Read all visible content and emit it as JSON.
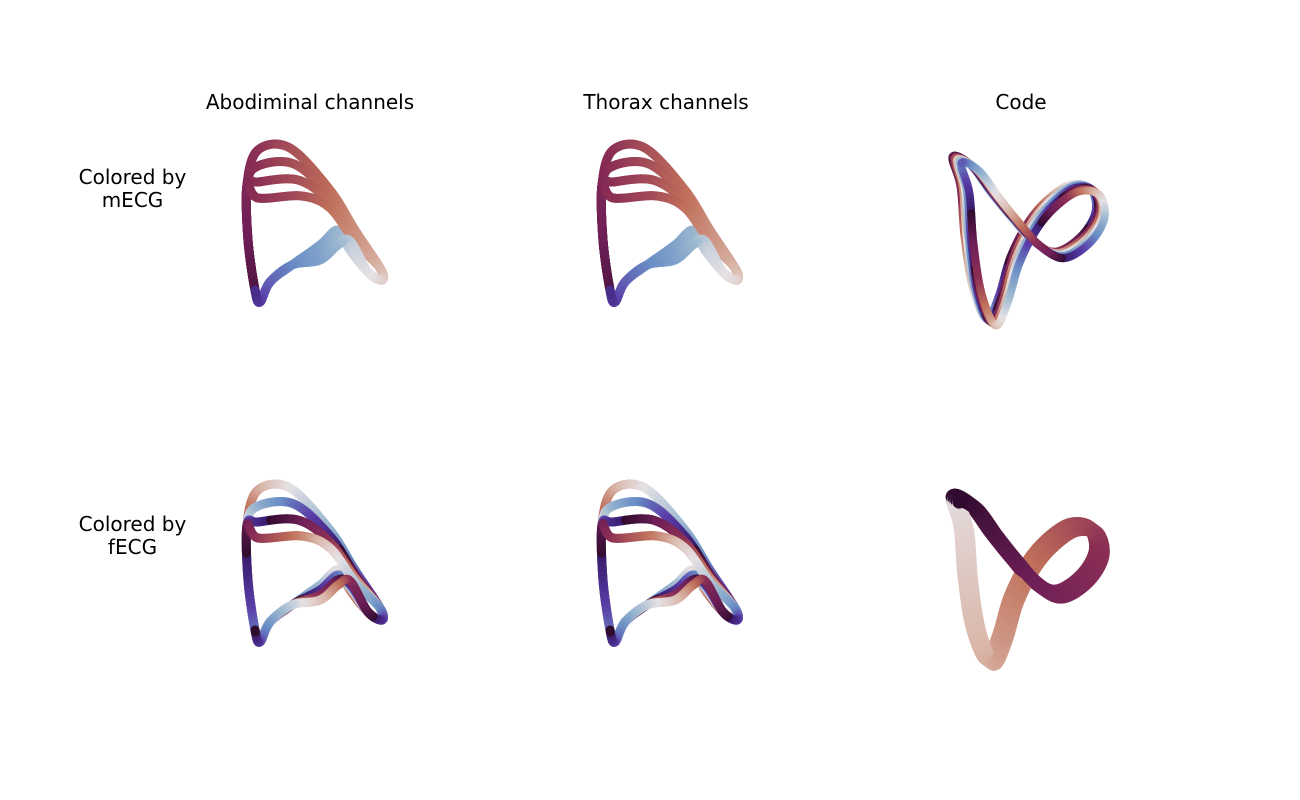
{
  "figure": {
    "column_titles": [
      "Abodiminal channels",
      "Thorax channels",
      "Code"
    ],
    "row_labels": [
      {
        "line1": "Colored by",
        "line2": "mECG"
      },
      {
        "line1": "Colored by",
        "line2": "fECG"
      }
    ],
    "colormap": [
      "#2f0b2e",
      "#6e1f57",
      "#8c2f55",
      "#c0705a",
      "#d9b6a8",
      "#e6e1e5",
      "#9fbad0",
      "#6a8fc6",
      "#5a3ea8",
      "#3a1d6e"
    ]
  }
}
